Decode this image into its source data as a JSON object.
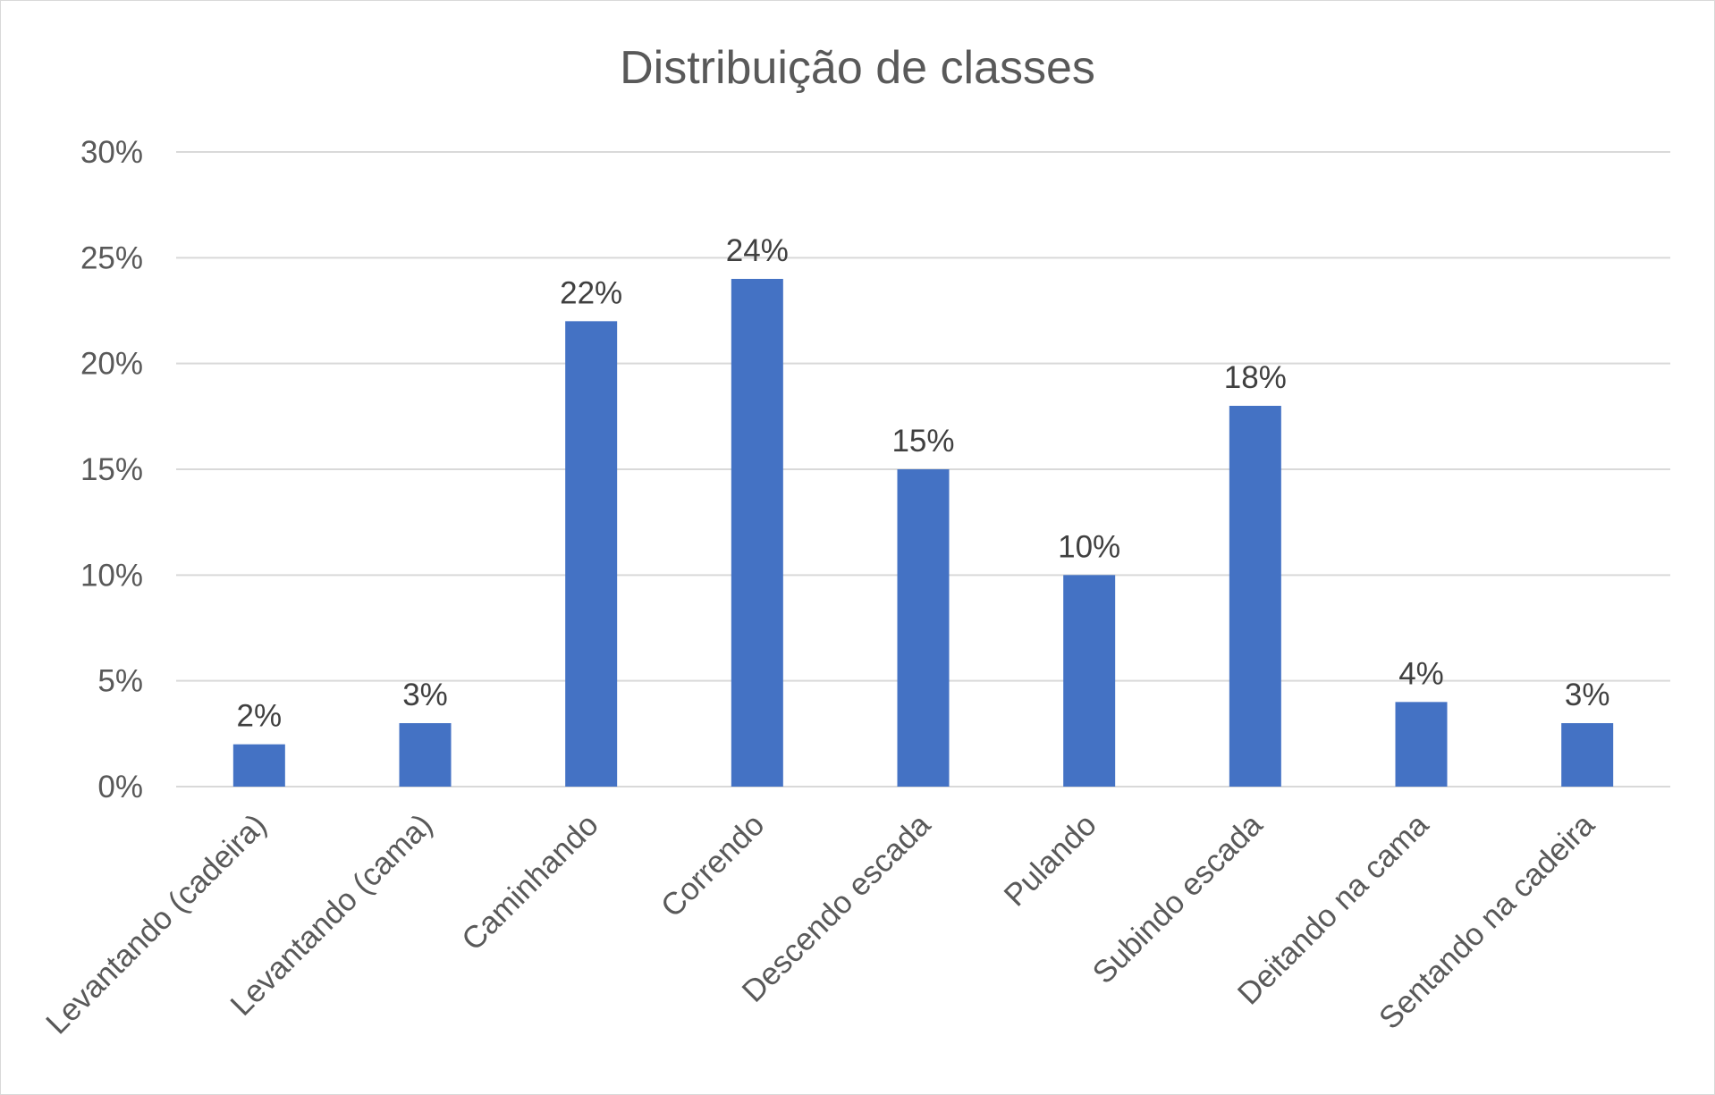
{
  "chart_data": {
    "type": "bar",
    "title": "Distribuição de classes",
    "xlabel": "",
    "ylabel": "",
    "categories": [
      "Levantando (cadeira)",
      "Levantando (cama)",
      "Caminhando",
      "Correndo",
      "Descendo escada",
      "Pulando",
      "Subindo escada",
      "Deitando na cama",
      "Sentando na cadeira"
    ],
    "values": [
      2,
      3,
      22,
      24,
      15,
      10,
      18,
      4,
      3
    ],
    "value_labels": [
      "2%",
      "3%",
      "22%",
      "24%",
      "15%",
      "10%",
      "18%",
      "4%",
      "3%"
    ],
    "ylim": [
      0,
      30
    ],
    "yticks": [
      0,
      5,
      10,
      15,
      20,
      25,
      30
    ],
    "ytick_labels": [
      "0%",
      "5%",
      "10%",
      "15%",
      "20%",
      "25%",
      "30%"
    ],
    "grid": true,
    "legend": "none",
    "bar_color": "#4472c4"
  }
}
